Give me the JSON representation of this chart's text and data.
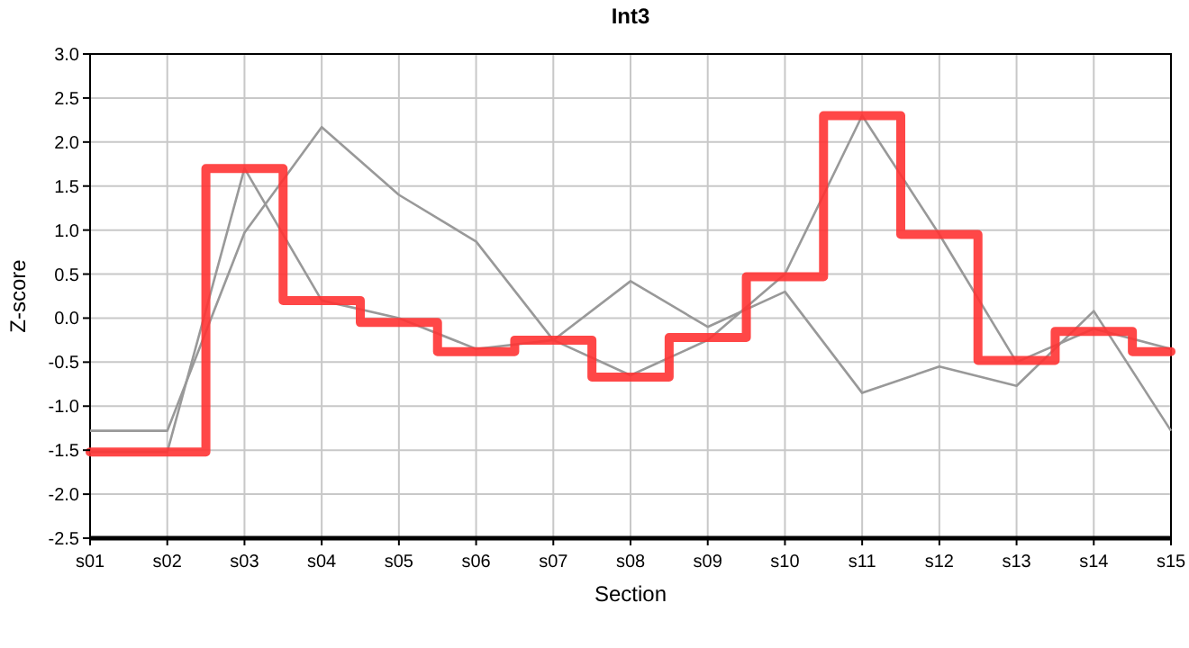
{
  "chart_data": {
    "type": "line",
    "title": "Int3",
    "xlabel": "Section",
    "ylabel": "Z-score",
    "categories": [
      "s01",
      "s02",
      "s03",
      "s04",
      "s05",
      "s06",
      "s07",
      "s08",
      "s09",
      "s10",
      "s11",
      "s12",
      "s13",
      "s14",
      "s15"
    ],
    "series": [
      {
        "color": "#999999",
        "values": [
          -1.28,
          -1.28,
          0.97,
          2.17,
          1.4,
          0.87,
          -0.25,
          0.42,
          -0.1,
          0.3,
          -0.85,
          -0.55,
          -0.77,
          0.08,
          -1.28
        ]
      },
      {
        "color": "#999999",
        "values": [
          -1.52,
          -1.52,
          1.7,
          0.2,
          0.0,
          -0.35,
          -0.25,
          -0.65,
          -0.25,
          0.5,
          2.3,
          0.95,
          -0.5,
          -0.12,
          -0.35
        ]
      },
      {
        "type": "step",
        "color": "#ff3333",
        "values": [
          -1.52,
          -1.52,
          1.7,
          0.2,
          -0.05,
          -0.38,
          -0.25,
          -0.67,
          -0.22,
          0.47,
          2.3,
          0.95,
          -0.48,
          -0.15,
          -0.38
        ]
      }
    ],
    "ylim": [
      -2.5,
      3.0
    ],
    "yticks": [
      {
        "value": -2.5,
        "label": "-2.5"
      },
      {
        "value": -2,
        "label": "-2.0"
      },
      {
        "value": -1.5,
        "label": "-1.5"
      },
      {
        "value": -1,
        "label": "-1.0"
      },
      {
        "value": -0.5,
        "label": "-0.5"
      },
      {
        "value": 0,
        "label": "0.0"
      },
      {
        "value": 0.5,
        "label": "0.5"
      },
      {
        "value": 1,
        "label": "1.0"
      },
      {
        "value": 1.5,
        "label": "1.5"
      },
      {
        "value": 2,
        "label": "2.0"
      },
      {
        "value": 2.5,
        "label": "2.5"
      },
      {
        "value": 3,
        "label": "3.0"
      }
    ],
    "grid": true
  }
}
